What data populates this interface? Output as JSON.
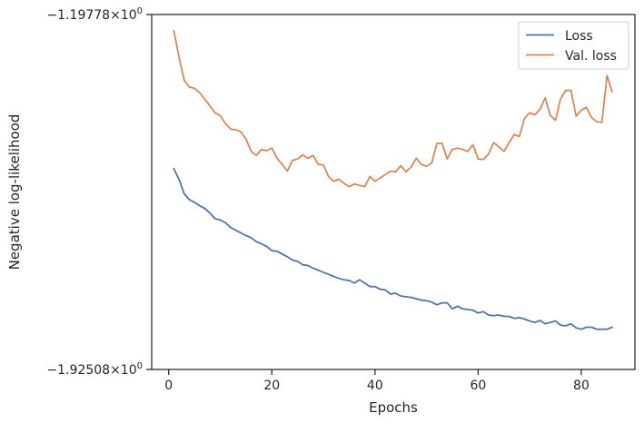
{
  "chart_data": {
    "type": "line",
    "title": "",
    "xlabel": "Epochs",
    "ylabel": "Negative log-likelihood",
    "xlim": [
      -3.3,
      90.4
    ],
    "ylim": [
      -1.92508,
      -1.19778
    ],
    "yscale": "symlog",
    "xticks": [
      0,
      20,
      40,
      60,
      80
    ],
    "xtick_labels": [
      "0",
      "20",
      "40",
      "60",
      "80"
    ],
    "ytick_labels": [
      "−1.19778×10⁰",
      "−1.92508×10⁰"
    ],
    "ytick_top_mantissa": "−1.19778",
    "ytick_bottom_mantissa": "−1.92508",
    "ytick_base": "10",
    "ytick_exponent": "0",
    "grid": false,
    "legend": "top-right",
    "series": [
      {
        "name": "Loss",
        "color": "#4c72b0",
        "x": [
          1,
          2,
          3,
          4,
          5,
          6,
          7,
          8,
          9,
          10,
          11,
          12,
          13,
          14,
          15,
          16,
          17,
          18,
          19,
          20,
          21,
          22,
          23,
          24,
          25,
          26,
          27,
          28,
          29,
          30,
          31,
          32,
          33,
          34,
          35,
          36,
          37,
          38,
          39,
          40,
          41,
          42,
          43,
          44,
          45,
          46,
          47,
          48,
          49,
          50,
          51,
          52,
          53,
          54,
          55,
          56,
          57,
          58,
          59,
          60,
          61,
          62,
          63,
          64,
          65,
          66,
          67,
          68,
          69,
          70,
          71,
          72,
          73,
          74,
          75,
          76,
          77,
          78,
          79,
          80,
          81,
          82,
          83,
          84,
          85,
          86
        ],
        "y": [
          -1.5135,
          -1.5357,
          -1.5649,
          -1.5771,
          -1.5827,
          -1.5897,
          -1.5953,
          -1.605,
          -1.6162,
          -1.6189,
          -1.6245,
          -1.6342,
          -1.6398,
          -1.6453,
          -1.6509,
          -1.6551,
          -1.6634,
          -1.6676,
          -1.6732,
          -1.6815,
          -1.6829,
          -1.6885,
          -1.694,
          -1.701,
          -1.7038,
          -1.7107,
          -1.7121,
          -1.7177,
          -1.7218,
          -1.726,
          -1.7302,
          -1.7343,
          -1.7385,
          -1.7413,
          -1.7427,
          -1.7482,
          -1.7413,
          -1.7482,
          -1.7552,
          -1.7552,
          -1.7607,
          -1.7621,
          -1.7705,
          -1.7691,
          -1.7746,
          -1.776,
          -1.7774,
          -1.7802,
          -1.783,
          -1.7843,
          -1.7871,
          -1.7927,
          -1.7885,
          -1.7885,
          -1.801,
          -1.7955,
          -1.801,
          -1.8024,
          -1.8038,
          -1.8093,
          -1.8066,
          -1.8135,
          -1.8149,
          -1.8135,
          -1.8163,
          -1.8163,
          -1.8204,
          -1.8191,
          -1.8218,
          -1.826,
          -1.8288,
          -1.8246,
          -1.8316,
          -1.8288,
          -1.826,
          -1.8343,
          -1.8357,
          -1.8316,
          -1.8399,
          -1.8426,
          -1.8385,
          -1.8385,
          -1.8426,
          -1.8426,
          -1.8426,
          -1.8385
        ]
      },
      {
        "name": "Val. loss",
        "color": "#dd8452",
        "x": [
          1,
          2,
          3,
          4,
          5,
          6,
          7,
          8,
          9,
          10,
          11,
          12,
          13,
          14,
          15,
          16,
          17,
          18,
          19,
          20,
          21,
          22,
          23,
          24,
          25,
          26,
          27,
          28,
          29,
          30,
          31,
          32,
          33,
          34,
          35,
          36,
          37,
          38,
          39,
          40,
          41,
          42,
          43,
          44,
          45,
          46,
          47,
          48,
          49,
          50,
          51,
          52,
          53,
          54,
          55,
          56,
          57,
          58,
          59,
          60,
          61,
          62,
          63,
          64,
          65,
          66,
          67,
          68,
          69,
          70,
          71,
          72,
          73,
          74,
          75,
          76,
          77,
          78,
          79,
          80,
          81,
          82,
          83,
          84,
          85,
          86
        ],
        "y": [
          -1.231,
          -1.2852,
          -1.3325,
          -1.3464,
          -1.3491,
          -1.3575,
          -1.3714,
          -1.3853,
          -1.3992,
          -1.4047,
          -1.4214,
          -1.4325,
          -1.4339,
          -1.4381,
          -1.4534,
          -1.4784,
          -1.4867,
          -1.4742,
          -1.477,
          -1.4715,
          -1.4923,
          -1.5048,
          -1.5187,
          -1.4965,
          -1.4937,
          -1.4853,
          -1.4923,
          -1.4867,
          -1.5048,
          -1.5062,
          -1.5298,
          -1.5395,
          -1.5354,
          -1.5437,
          -1.5507,
          -1.5451,
          -1.5479,
          -1.5507,
          -1.5298,
          -1.5395,
          -1.5326,
          -1.5257,
          -1.5187,
          -1.5201,
          -1.5076,
          -1.5201,
          -1.5104,
          -1.4923,
          -1.5048,
          -1.509,
          -1.502,
          -1.4617,
          -1.4617,
          -1.4937,
          -1.4742,
          -1.4715,
          -1.4742,
          -1.4784,
          -1.4645,
          -1.4937,
          -1.4951,
          -1.484,
          -1.4603,
          -1.4687,
          -1.4784,
          -1.4603,
          -1.4436,
          -1.4478,
          -1.4103,
          -1.3992,
          -1.4033,
          -1.3922,
          -1.3686,
          -1.4047,
          -1.4144,
          -1.37,
          -1.3533,
          -1.3533,
          -1.4061,
          -1.3936,
          -1.388,
          -1.4089,
          -1.4172,
          -1.4186,
          -1.3228,
          -1.3561
        ]
      }
    ]
  }
}
